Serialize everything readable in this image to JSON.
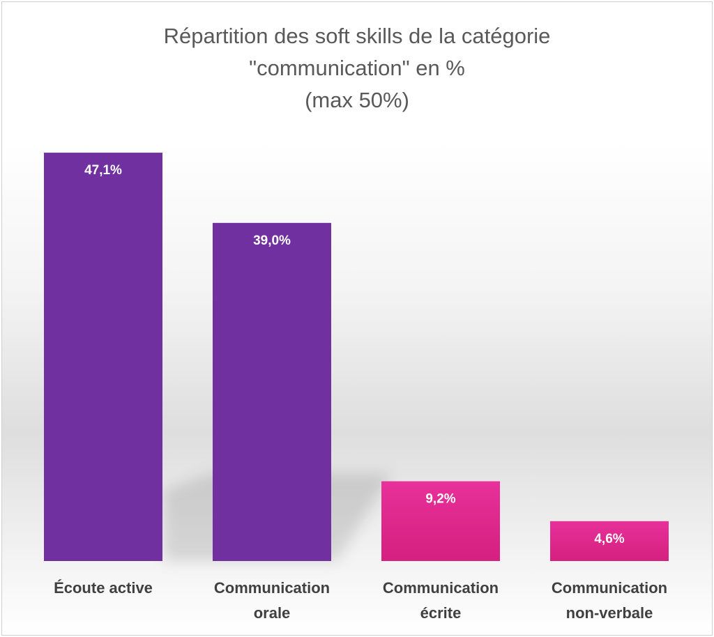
{
  "chart_data": {
    "type": "bar",
    "title_lines": [
      "Répartition des soft skills de la catégorie",
      "\"communication\" en %",
      "(max 50%)"
    ],
    "categories": [
      [
        "Écoute active"
      ],
      [
        "Communication",
        "orale"
      ],
      [
        "Communication",
        "écrite"
      ],
      [
        "Communication",
        "non-verbale"
      ]
    ],
    "values": [
      47.1,
      39.0,
      9.2,
      4.6
    ],
    "value_labels": [
      "47,1%",
      "39,0%",
      "9,2%",
      "4,6%"
    ],
    "colors": [
      "#7030A0",
      "#7030A0",
      "#E22D90",
      "#E22D90"
    ],
    "ylim": [
      0,
      50
    ],
    "grid": false,
    "legend": "none"
  }
}
